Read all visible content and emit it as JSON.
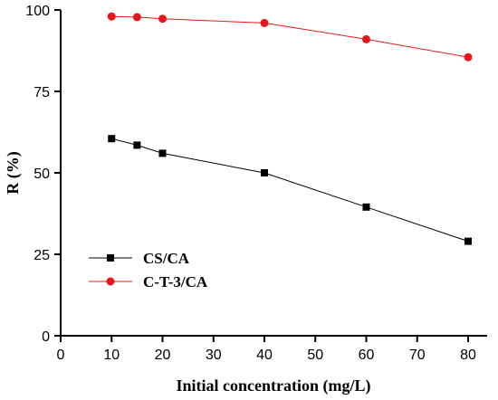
{
  "chart_data": {
    "type": "line",
    "xlabel": "Initial concentration (mg/L)",
    "ylabel": "R (%)",
    "xlim": [
      0,
      80
    ],
    "ylim": [
      0,
      100
    ],
    "xticks": [
      0,
      10,
      20,
      30,
      40,
      50,
      60,
      70,
      80
    ],
    "yticks": [
      0,
      25,
      50,
      75,
      100
    ],
    "grid": false,
    "legend_position": "lower-left",
    "series": [
      {
        "name": "CS/CA",
        "marker": "square",
        "color": "#000000",
        "x": [
          10,
          15,
          20,
          40,
          60,
          80
        ],
        "y": [
          60.5,
          58.5,
          56.0,
          50.0,
          39.5,
          29.0
        ]
      },
      {
        "name": "C-T-3/CA",
        "marker": "circle",
        "color": "#e8151b",
        "x": [
          10,
          15,
          20,
          40,
          60,
          80
        ],
        "y": [
          98.0,
          97.8,
          97.3,
          96.0,
          91.0,
          85.5
        ]
      }
    ]
  }
}
